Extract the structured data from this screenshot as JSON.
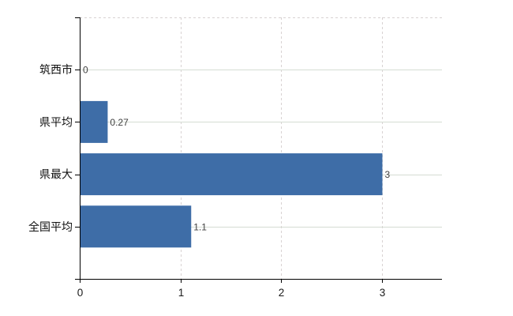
{
  "chart_data": {
    "type": "bar",
    "orientation": "horizontal",
    "title": "",
    "xlabel": "",
    "ylabel": "",
    "categories": [
      "筑西市",
      "県平均",
      "県最大",
      "全国平均"
    ],
    "values": [
      0,
      0.27,
      3,
      1.1
    ],
    "value_labels": [
      "0",
      "0.27",
      "3",
      "1.1"
    ],
    "xlim": [
      0,
      3.6
    ],
    "xticks": [
      0,
      1,
      2,
      3
    ],
    "xtick_labels": [
      "0",
      "1",
      "2",
      "3"
    ],
    "legend": "none",
    "grid": {
      "horizontal": "solid",
      "vertical": "dashed",
      "top_border": "dashed"
    },
    "colors": {
      "bar": "#3e6da7",
      "axis": "#000000",
      "grid_horizontal": "#d5dcd3",
      "grid_vertical": "#d8d2d2",
      "category_label": "#111111",
      "xtick_label": "#1a1a1a",
      "value_label": "#3f3f3f",
      "background": "#ffffff"
    }
  }
}
